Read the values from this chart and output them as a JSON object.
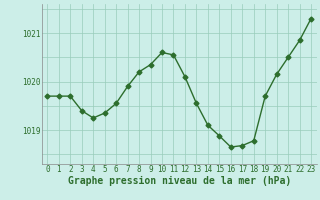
{
  "x": [
    0,
    1,
    2,
    3,
    4,
    5,
    6,
    7,
    8,
    9,
    10,
    11,
    12,
    13,
    14,
    15,
    16,
    17,
    18,
    19,
    20,
    21,
    22,
    23
  ],
  "y": [
    1019.7,
    1019.7,
    1019.7,
    1019.4,
    1019.25,
    1019.35,
    1019.55,
    1019.9,
    1020.2,
    1020.35,
    1020.6,
    1020.55,
    1020.1,
    1019.55,
    1019.1,
    1018.88,
    1018.65,
    1018.68,
    1018.78,
    1019.7,
    1020.15,
    1020.5,
    1020.85,
    1021.3
  ],
  "line_color": "#2d6e2d",
  "marker": "D",
  "markersize": 2.5,
  "linewidth": 1.0,
  "background_color": "#cceee8",
  "grid_color": "#99ccbb",
  "xlabel": "Graphe pression niveau de la mer (hPa)",
  "xlabel_fontsize": 7,
  "tick_labels": [
    "0",
    "1",
    "2",
    "3",
    "4",
    "5",
    "6",
    "7",
    "8",
    "9",
    "10",
    "11",
    "12",
    "13",
    "14",
    "15",
    "16",
    "17",
    "18",
    "19",
    "20",
    "21",
    "22",
    "23"
  ],
  "ytick_positions": [
    1019,
    1020,
    1021
  ],
  "ytick_labels": [
    "1019",
    "1020",
    "1021"
  ],
  "ylim": [
    1018.3,
    1021.6
  ],
  "xlim": [
    -0.5,
    23.5
  ],
  "tick_color": "#2d6e2d",
  "tick_fontsize": 5.5,
  "xlabel_color": "#2d6e2d"
}
